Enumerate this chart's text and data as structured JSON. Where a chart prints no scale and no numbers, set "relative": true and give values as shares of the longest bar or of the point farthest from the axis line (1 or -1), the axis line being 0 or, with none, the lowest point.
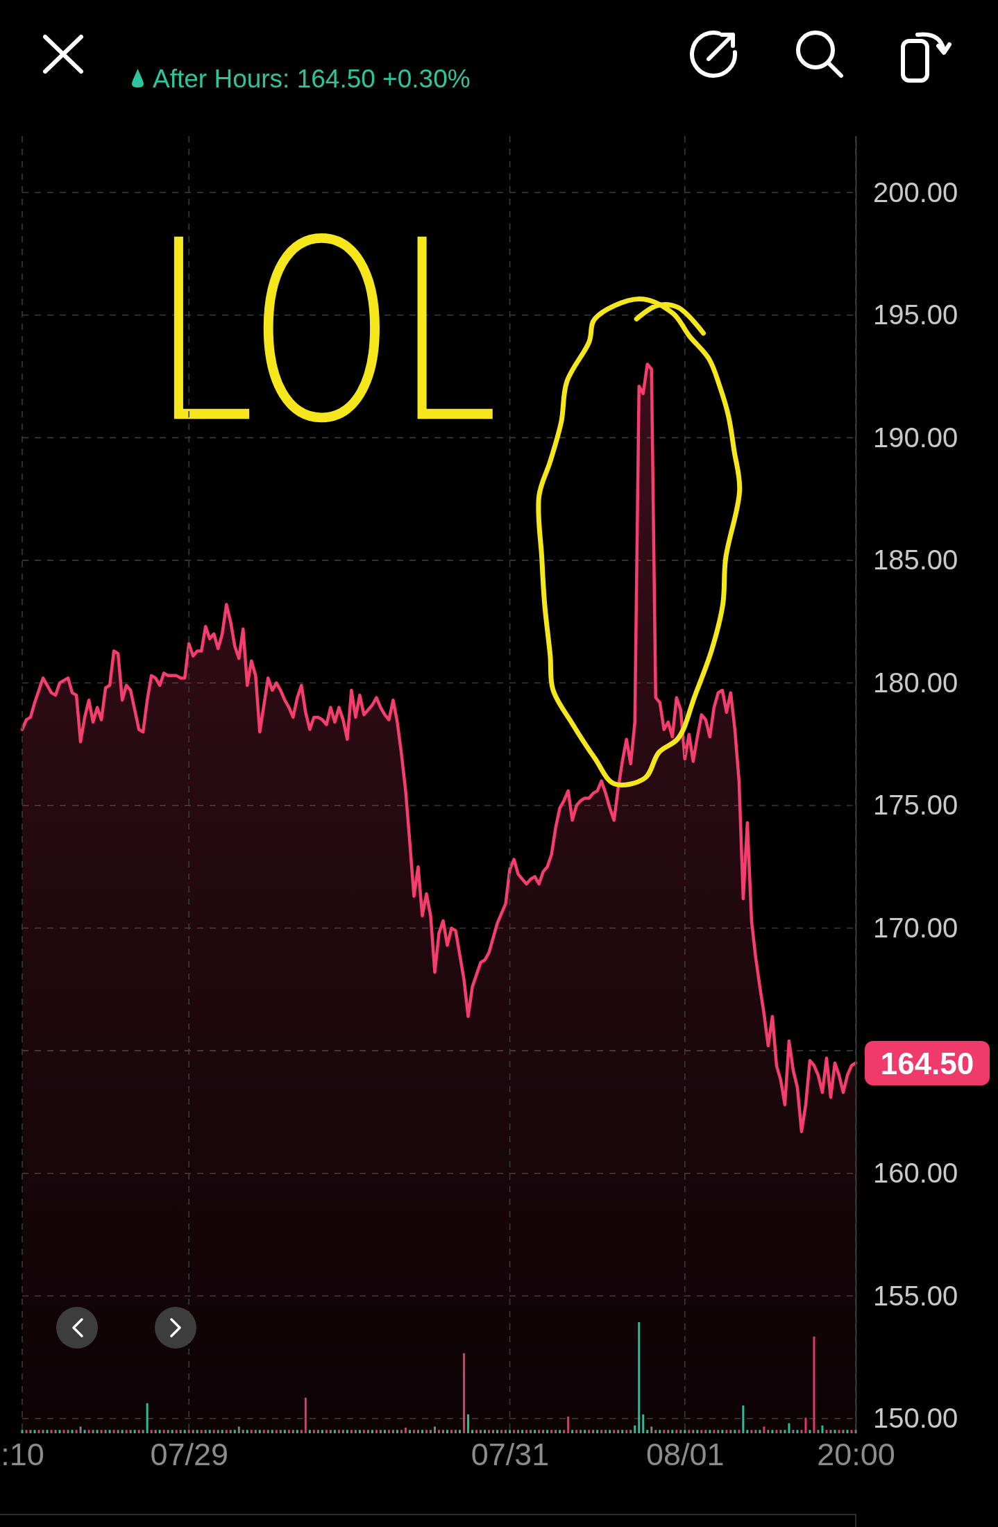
{
  "chart_data": [
    {
      "type": "area",
      "subtitle": "After Hours: 164.50 +0.30%",
      "color": "#f53d6e",
      "categories": [
        null,
        null,
        null,
        null,
        null,
        null,
        null,
        null,
        null,
        null,
        null,
        null,
        null,
        null,
        null,
        null,
        null,
        null,
        null,
        null,
        null,
        null,
        null,
        null,
        null,
        null,
        null,
        null,
        null,
        null,
        null,
        null,
        null,
        null,
        null,
        null,
        null,
        null,
        null,
        null,
        null,
        null,
        null,
        null,
        null,
        null,
        null,
        null,
        null,
        null,
        null,
        null,
        null,
        null,
        null,
        null,
        null,
        null,
        null,
        null,
        null,
        null,
        null,
        null,
        null,
        null,
        null,
        null,
        null,
        null,
        null,
        null,
        null,
        null,
        null,
        null,
        null,
        null,
        null,
        null,
        null,
        null,
        null,
        null,
        null,
        null,
        null,
        null,
        null,
        null,
        null,
        null,
        null,
        null,
        null,
        null,
        null,
        null,
        null,
        null,
        null,
        null,
        null,
        null,
        null,
        null,
        null,
        null,
        null,
        null,
        null,
        null,
        null,
        null,
        null,
        null,
        null,
        null,
        null,
        null,
        null,
        null,
        null,
        null,
        null,
        null,
        null,
        null,
        null,
        null,
        null,
        null,
        null,
        null,
        null,
        null,
        null,
        null,
        null,
        null,
        null,
        null,
        null,
        null,
        null,
        null,
        null,
        null,
        null,
        null,
        null,
        null,
        null,
        null,
        null,
        null,
        null,
        null,
        null,
        null,
        null,
        null,
        null,
        null,
        null,
        null,
        null,
        null,
        null,
        null,
        null,
        null,
        null,
        null,
        null,
        null,
        null,
        null,
        null,
        null,
        null,
        null,
        null,
        null,
        null,
        null,
        null,
        null,
        null,
        null,
        null,
        null,
        null,
        null,
        null,
        null,
        null,
        null,
        null,
        null,
        null
      ],
      "values": [
        178.1,
        178.5,
        178.6,
        179.2,
        179.7,
        180.2,
        179.9,
        179.6,
        179.5,
        180.0,
        180.1,
        180.2,
        179.6,
        179.5,
        177.6,
        178.6,
        179.3,
        178.4,
        179.0,
        178.5,
        179.8,
        179.9,
        181.3,
        181.2,
        179.3,
        179.9,
        179.7,
        178.9,
        178.1,
        178.0,
        179.3,
        180.3,
        180.2,
        179.9,
        180.4,
        180.3,
        180.3,
        180.3,
        180.2,
        180.2,
        181.6,
        181.1,
        181.3,
        181.3,
        182.3,
        181.8,
        182.0,
        181.4,
        182.0,
        183.2,
        182.5,
        181.5,
        181.0,
        182.2,
        179.9,
        180.9,
        180.3,
        178.0,
        179.1,
        180.2,
        179.7,
        180.0,
        179.7,
        179.3,
        179.0,
        178.6,
        179.4,
        179.9,
        178.8,
        178.1,
        178.6,
        178.6,
        178.5,
        178.3,
        179.0,
        178.4,
        179.0,
        178.5,
        177.7,
        179.7,
        178.6,
        179.5,
        178.7,
        178.9,
        179.1,
        179.4,
        179.0,
        178.7,
        178.5,
        179.3,
        178.4,
        177.1,
        175.6,
        173.5,
        171.3,
        172.5,
        170.5,
        171.4,
        170.5,
        168.2,
        169.8,
        170.3,
        169.3,
        170.0,
        169.9,
        168.9,
        167.9,
        166.4,
        167.6,
        168.1,
        168.6,
        168.7,
        169.0,
        169.6,
        170.2,
        170.6,
        171.0,
        172.4,
        172.8,
        172.2,
        172.0,
        171.8,
        172.0,
        172.1,
        171.8,
        172.3,
        172.5,
        173.0,
        174.1,
        174.9,
        175.2,
        175.6,
        174.4,
        175.0,
        175.2,
        175.3,
        175.3,
        175.5,
        175.6,
        176.0,
        175.5,
        174.9,
        174.4,
        175.7,
        176.8,
        177.7,
        176.7,
        178.4,
        192.1,
        191.8,
        193.0,
        192.8,
        179.4,
        179.2,
        178.1,
        178.4,
        177.8,
        179.4,
        178.9,
        176.9,
        177.9,
        176.8,
        177.8,
        178.7,
        178.5,
        177.8,
        179.0,
        179.6,
        179.7,
        178.8,
        179.6,
        178.1,
        176.0,
        171.2,
        174.3,
        170.3,
        168.8,
        167.6,
        166.5,
        165.2,
        166.4,
        164.4,
        163.8,
        162.8,
        165.4,
        164.2,
        163.5,
        161.7,
        162.8,
        164.6,
        164.4,
        164.0,
        163.3,
        164.7,
        163.1,
        164.5,
        164.0,
        163.3,
        164.0,
        164.4,
        164.5
      ],
      "ylim": [
        149.4,
        202.3
      ],
      "yticks": [
        {
          "value": 150,
          "label": "150.00"
        },
        {
          "value": 155,
          "label": "155.00"
        },
        {
          "value": 160,
          "label": "160.00"
        },
        {
          "value": 165,
          "label": null
        },
        {
          "value": 170,
          "label": "170.00"
        },
        {
          "value": 175,
          "label": "175.00"
        },
        {
          "value": 180,
          "label": "180.00"
        },
        {
          "value": 185,
          "label": "185.00"
        },
        {
          "value": 190,
          "label": "190.00"
        },
        {
          "value": 195,
          "label": "195.00"
        },
        {
          "value": 200,
          "label": "200.00"
        }
      ],
      "grid": "y",
      "annotations": [
        "LOL",
        "164.50"
      ]
    },
    {
      "type": "bar",
      "relative": true,
      "grid": "x",
      "categories": [
        ":10",
        null,
        null,
        null,
        null,
        null,
        null,
        null,
        null,
        null,
        null,
        null,
        null,
        null,
        null,
        null,
        null,
        null,
        null,
        null,
        null,
        null,
        null,
        null,
        null,
        null,
        null,
        null,
        null,
        null,
        null,
        null,
        null,
        null,
        null,
        null,
        null,
        null,
        null,
        null,
        "07/29",
        null,
        null,
        null,
        null,
        null,
        null,
        null,
        null,
        null,
        null,
        null,
        null,
        null,
        null,
        null,
        null,
        null,
        null,
        null,
        null,
        null,
        null,
        null,
        null,
        null,
        null,
        null,
        null,
        null,
        null,
        null,
        null,
        null,
        null,
        null,
        null,
        null,
        null,
        null,
        null,
        null,
        null,
        null,
        null,
        null,
        null,
        null,
        null,
        null,
        null,
        null,
        null,
        null,
        null,
        null,
        null,
        null,
        null,
        null,
        null,
        null,
        null,
        null,
        null,
        null,
        null,
        null,
        null,
        null,
        null,
        null,
        null,
        null,
        null,
        null,
        null,
        "07/31",
        null,
        null,
        null,
        null,
        null,
        null,
        null,
        null,
        null,
        null,
        null,
        null,
        null,
        null,
        null,
        null,
        null,
        null,
        null,
        null,
        null,
        null,
        null,
        null,
        null,
        null,
        null,
        null,
        null,
        null,
        null,
        null,
        null,
        null,
        null,
        null,
        null,
        null,
        null,
        null,
        null,
        "08/01",
        null,
        null,
        null,
        null,
        null,
        null,
        null,
        null,
        null,
        null,
        null,
        null,
        null,
        null,
        null,
        null,
        null,
        null,
        null,
        null,
        null,
        null,
        null,
        null,
        null,
        null,
        null,
        null,
        null,
        null,
        null,
        null,
        null,
        null,
        null,
        null,
        null,
        null,
        null,
        null,
        "20:00"
      ],
      "values": [
        0.03,
        0.03,
        0.03,
        0.03,
        0.03,
        0.03,
        0.03,
        0.03,
        0.03,
        0.03,
        0.03,
        0.03,
        0.03,
        0.03,
        0.06,
        0.03,
        0.03,
        0.03,
        0.03,
        0.03,
        0.03,
        0.03,
        0.03,
        0.03,
        0.03,
        0.03,
        0.03,
        0.03,
        0.03,
        0.03,
        0.27,
        0.03,
        0.03,
        0.03,
        0.03,
        0.03,
        0.03,
        0.03,
        0.03,
        0.03,
        0.03,
        0.03,
        0.03,
        0.03,
        0.03,
        0.03,
        0.03,
        0.03,
        0.03,
        0.03,
        0.03,
        0.03,
        0.06,
        0.03,
        0.03,
        0.03,
        0.03,
        0.03,
        0.03,
        0.03,
        0.03,
        0.03,
        0.03,
        0.03,
        0.03,
        0.03,
        0.03,
        0.03,
        0.32,
        0.03,
        0.03,
        0.03,
        0.03,
        0.03,
        0.03,
        0.03,
        0.03,
        0.03,
        0.03,
        0.03,
        0.03,
        0.03,
        0.03,
        0.03,
        0.03,
        0.03,
        0.03,
        0.03,
        0.03,
        0.03,
        0.03,
        0.03,
        0.05,
        0.03,
        0.03,
        0.03,
        0.03,
        0.03,
        0.03,
        0.06,
        0.03,
        0.03,
        0.03,
        0.03,
        0.03,
        0.03,
        0.72,
        0.17,
        0.03,
        0.03,
        0.03,
        0.03,
        0.03,
        0.03,
        0.03,
        0.03,
        0.03,
        0.03,
        0.03,
        0.03,
        0.03,
        0.03,
        0.03,
        0.03,
        0.03,
        0.03,
        0.03,
        0.03,
        0.03,
        0.03,
        0.03,
        0.15,
        0.03,
        0.03,
        0.03,
        0.03,
        0.03,
        0.03,
        0.03,
        0.03,
        0.03,
        0.03,
        0.03,
        0.03,
        0.03,
        0.03,
        0.03,
        0.07,
        1,
        0.17,
        0.03,
        0.06,
        0.03,
        0.03,
        0.03,
        0.03,
        0.03,
        0.03,
        0.03,
        0.03,
        0.03,
        0.03,
        0.03,
        0.03,
        0.03,
        0.03,
        0.03,
        0.03,
        0.03,
        0.03,
        0.03,
        0.03,
        0.03,
        0.25,
        0.03,
        0.03,
        0.03,
        0.03,
        0.06,
        0.03,
        0.03,
        0.03,
        0.03,
        0.03,
        0.09,
        0.03,
        0.03,
        0.03,
        0.14,
        0.03,
        0.87,
        0.03,
        0.07,
        0.03,
        0.03,
        0.03,
        0.03,
        0.03,
        0.03,
        0.03,
        0.03
      ],
      "colors": [
        "#20c29a",
        "#e0386a",
        "#7f7f7f",
        "#20c29a",
        "#e0386a",
        "#7f7f7f",
        "#20c29a",
        "#e0386a",
        "#7f7f7f",
        "#20c29a",
        "#e0386a",
        "#7f7f7f",
        "#20c29a",
        "#e0386a",
        "#7f7f7f",
        "#20c29a",
        "#e0386a",
        "#7f7f7f",
        "#20c29a",
        "#e0386a",
        "#7f7f7f",
        "#20c29a",
        "#e0386a",
        "#7f7f7f",
        "#20c29a",
        "#e0386a",
        "#7f7f7f",
        "#20c29a",
        "#e0386a",
        "#7f7f7f",
        "#20c29a",
        "#e0386a",
        "#7f7f7f",
        "#20c29a",
        "#e0386a",
        "#7f7f7f",
        "#20c29a",
        "#e0386a",
        "#7f7f7f",
        "#20c29a",
        "#e0386a",
        "#7f7f7f",
        "#20c29a",
        "#e0386a",
        "#7f7f7f",
        "#20c29a",
        "#e0386a",
        "#7f7f7f",
        "#20c29a",
        "#e0386a",
        "#7f7f7f",
        "#20c29a",
        "#7f7f7f",
        "#7f7f7f",
        "#20c29a",
        "#e0386a",
        "#7f7f7f",
        "#20c29a",
        "#e0386a",
        "#7f7f7f",
        "#20c29a",
        "#e0386a",
        "#7f7f7f",
        "#20c29a",
        "#e0386a",
        "#7f7f7f",
        "#20c29a",
        "#e0386a",
        "#e0386a",
        "#20c29a",
        "#e0386a",
        "#7f7f7f",
        "#20c29a",
        "#e0386a",
        "#7f7f7f",
        "#20c29a",
        "#e0386a",
        "#7f7f7f",
        "#20c29a",
        "#e0386a",
        "#7f7f7f",
        "#20c29a",
        "#e0386a",
        "#7f7f7f",
        "#20c29a",
        "#e0386a",
        "#7f7f7f",
        "#20c29a",
        "#e0386a",
        "#7f7f7f",
        "#20c29a",
        "#e0386a",
        "#e0386a",
        "#20c29a",
        "#e0386a",
        "#7f7f7f",
        "#20c29a",
        "#e0386a",
        "#7f7f7f",
        "#7f7f7f",
        "#e0386a",
        "#7f7f7f",
        "#20c29a",
        "#e0386a",
        "#7f7f7f",
        "#20c29a",
        "#e0386a",
        "#20c29a",
        "#20c29a",
        "#e0386a",
        "#7f7f7f",
        "#20c29a",
        "#e0386a",
        "#7f7f7f",
        "#20c29a",
        "#e0386a",
        "#7f7f7f",
        "#20c29a",
        "#e0386a",
        "#7f7f7f",
        "#20c29a",
        "#e0386a",
        "#7f7f7f",
        "#20c29a",
        "#e0386a",
        "#7f7f7f",
        "#20c29a",
        "#e0386a",
        "#7f7f7f",
        "#20c29a",
        "#e0386a",
        "#e0386a",
        "#20c29a",
        "#e0386a",
        "#7f7f7f",
        "#20c29a",
        "#e0386a",
        "#7f7f7f",
        "#20c29a",
        "#e0386a",
        "#7f7f7f",
        "#20c29a",
        "#e0386a",
        "#7f7f7f",
        "#20c29a",
        "#e0386a",
        "#7f7f7f",
        "#20c29a",
        "#20c29a",
        "#20c29a",
        "#20c29a",
        "#7f7f7f",
        "#7f7f7f",
        "#20c29a",
        "#e0386a",
        "#7f7f7f",
        "#20c29a",
        "#e0386a",
        "#7f7f7f",
        "#20c29a",
        "#e0386a",
        "#7f7f7f",
        "#20c29a",
        "#e0386a",
        "#7f7f7f",
        "#20c29a",
        "#e0386a",
        "#7f7f7f",
        "#20c29a",
        "#e0386a",
        "#7f7f7f",
        "#20c29a",
        "#e0386a",
        "#20c29a",
        "#20c29a",
        "#e0386a",
        "#7f7f7f",
        "#20c29a",
        "#e0386a",
        "#7f7f7f",
        "#20c29a",
        "#e0386a",
        "#7f7f7f",
        "#20c29a",
        "#20c29a",
        "#7f7f7f",
        "#20c29a",
        "#e0386a",
        "#e0386a",
        "#20c29a",
        "#e0386a",
        "#7f7f7f",
        "#20c29a",
        "#e0386a",
        "#7f7f7f",
        "#20c29a",
        "#e0386a",
        "#7f7f7f",
        "#20c29a",
        "#e0386a",
        "#7f7f7f"
      ]
    }
  ]
}
